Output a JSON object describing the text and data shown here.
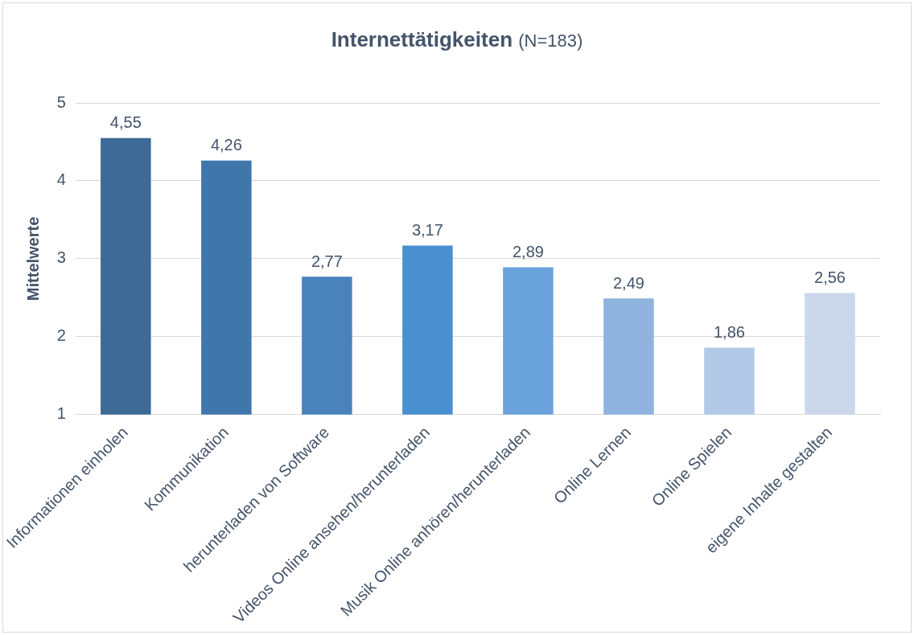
{
  "chart_data": {
    "type": "bar",
    "title": "Internettätigkeiten",
    "subtitle": "(N=183)",
    "ylabel": "Mittelwerte",
    "categories": [
      "Informationen einholen",
      "Kommunikation",
      "herunterladen von Software",
      "Videos Online ansehen/herunterladen",
      "Musik Online anhören/herunterladen",
      "Online Lernen",
      "Online Spielen",
      "eigene Inhalte gestalten"
    ],
    "values": [
      4.55,
      4.26,
      2.77,
      3.17,
      2.89,
      2.49,
      1.86,
      2.56
    ],
    "colors": [
      "#3d6a96",
      "#3f77ab",
      "#4a82bb",
      "#4a8fd0",
      "#6ba3dc",
      "#90b2de",
      "#b1c9e7",
      "#cbd8ec"
    ],
    "value_labels": [
      "4,55",
      "4,26",
      "2,77",
      "3,17",
      "2,89",
      "2,49",
      "1,86",
      "2,56"
    ],
    "ylim": [
      1,
      5
    ],
    "yticks": [
      1,
      2,
      3,
      4,
      5
    ],
    "grid": "y",
    "legend": false
  }
}
